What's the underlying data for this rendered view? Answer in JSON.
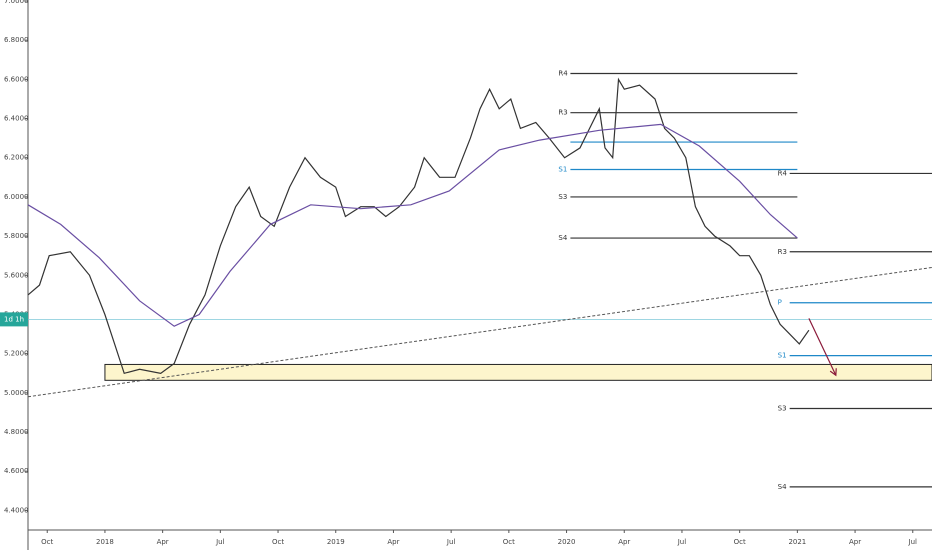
{
  "chart_data": {
    "type": "line",
    "current_label": "1d 1h",
    "current_value": 5.375,
    "xlim": [
      -1,
      46
    ],
    "ylim": [
      4.3,
      7.0
    ],
    "xticks": [
      {
        "value": 0,
        "label": "Oct"
      },
      {
        "value": 3,
        "label": "2018"
      },
      {
        "value": 6,
        "label": "Apr"
      },
      {
        "value": 9,
        "label": "Jul"
      },
      {
        "value": 12,
        "label": "Oct"
      },
      {
        "value": 15,
        "label": "2019"
      },
      {
        "value": 18,
        "label": "Apr"
      },
      {
        "value": 21,
        "label": "Jul"
      },
      {
        "value": 24,
        "label": "Oct"
      },
      {
        "value": 27,
        "label": "2020"
      },
      {
        "value": 30,
        "label": "Apr"
      },
      {
        "value": 33,
        "label": "Jul"
      },
      {
        "value": 36,
        "label": "Oct"
      },
      {
        "value": 39,
        "label": "2021"
      },
      {
        "value": 42,
        "label": "Apr"
      },
      {
        "value": 45,
        "label": "Jul"
      }
    ],
    "yticks": [
      {
        "value": 4.4,
        "label": "4.4000"
      },
      {
        "value": 4.6,
        "label": "4.6000"
      },
      {
        "value": 4.8,
        "label": "4.8000"
      },
      {
        "value": 5.0,
        "label": "5.0000"
      },
      {
        "value": 5.2,
        "label": "5.2000"
      },
      {
        "value": 5.4,
        "label": "5.4000"
      },
      {
        "value": 5.6,
        "label": "5.6000"
      },
      {
        "value": 5.8,
        "label": "5.8000"
      },
      {
        "value": 6.0,
        "label": "6.0000"
      },
      {
        "value": 6.2,
        "label": "6.2000"
      },
      {
        "value": 6.4,
        "label": "6.4000"
      },
      {
        "value": 6.6,
        "label": "6.6000"
      },
      {
        "value": 6.8,
        "label": "6.8000"
      },
      {
        "value": 7.0,
        "label": "7.0000"
      }
    ],
    "series": [
      {
        "color": "#333333",
        "x": [
          -1.0,
          -0.4,
          0.1,
          1.2,
          2.2,
          3.0,
          3.5,
          4.0,
          4.8,
          5.9,
          6.6,
          7.4,
          8.2,
          9.0,
          9.8,
          10.5,
          11.1,
          11.8,
          12.6,
          13.4,
          14.2,
          15.0,
          15.5,
          16.3,
          17.0,
          17.6,
          18.3,
          19.1,
          19.6,
          20.4,
          21.2,
          22.0,
          22.5,
          23.0,
          23.5,
          24.1,
          24.6,
          25.4,
          26.1,
          26.9,
          27.7,
          28.2,
          28.7,
          29.0,
          29.4,
          29.7,
          30.0,
          30.8,
          31.6,
          32.1,
          32.6,
          33.2,
          33.7,
          34.2,
          34.7,
          35.5,
          36.0,
          36.5,
          37.1,
          37.6,
          38.1,
          38.6,
          39.1,
          39.6
        ],
        "values": [
          5.5,
          5.55,
          5.7,
          5.72,
          5.6,
          5.4,
          5.25,
          5.1,
          5.12,
          5.1,
          5.15,
          5.35,
          5.5,
          5.75,
          5.95,
          6.05,
          5.9,
          5.85,
          6.05,
          6.2,
          6.1,
          6.05,
          5.9,
          5.95,
          5.95,
          5.9,
          5.95,
          6.05,
          6.2,
          6.1,
          6.1,
          6.3,
          6.45,
          6.55,
          6.45,
          6.5,
          6.35,
          6.38,
          6.3,
          6.2,
          6.25,
          6.35,
          6.45,
          6.25,
          6.2,
          6.6,
          6.55,
          6.57,
          6.5,
          6.35,
          6.3,
          6.2,
          5.95,
          5.85,
          5.8,
          5.75,
          5.7,
          5.7,
          5.6,
          5.45,
          5.35,
          5.3,
          5.25,
          5.32
        ]
      },
      {
        "color": "#6a4fa3",
        "x": [
          -1.0,
          0.7,
          2.7,
          4.8,
          6.6,
          7.9,
          9.5,
          11.6,
          13.7,
          16.3,
          18.9,
          20.9,
          23.5,
          25.6,
          28.7,
          31.9,
          33.9,
          36.0,
          37.6,
          39.0
        ],
        "values": [
          5.96,
          5.86,
          5.69,
          5.47,
          5.34,
          5.4,
          5.62,
          5.86,
          5.96,
          5.94,
          5.96,
          6.03,
          6.24,
          6.29,
          6.34,
          6.37,
          6.26,
          6.08,
          5.91,
          5.79
        ]
      }
    ],
    "levels": [
      {
        "label": "R4",
        "value": 6.63,
        "x": [
          27.2,
          39.0
        ],
        "color": "#333333"
      },
      {
        "label": "R3",
        "value": 6.43,
        "x": [
          27.2,
          39.0
        ],
        "color": "#333333"
      },
      {
        "value": 6.28,
        "x": [
          27.2,
          39.0
        ],
        "color": "#1e88c8"
      },
      {
        "label": "S1",
        "value": 6.14,
        "x": [
          27.2,
          39.0
        ],
        "color": "#1e88c8"
      },
      {
        "label": "S3",
        "value": 6.0,
        "x": [
          27.2,
          39.0
        ],
        "color": "#333333"
      },
      {
        "label": "S4",
        "value": 5.79,
        "x": [
          27.2,
          39.0
        ],
        "color": "#333333"
      },
      {
        "label": "R4",
        "value": 6.12,
        "x": [
          38.6,
          46
        ],
        "color": "#333333"
      },
      {
        "label": "R3",
        "value": 5.72,
        "x": [
          38.6,
          46
        ],
        "color": "#333333"
      },
      {
        "label": "P",
        "value": 5.46,
        "x": [
          38.6,
          46
        ],
        "color": "#1e88c8"
      },
      {
        "label": "S1",
        "value": 5.19,
        "x": [
          38.6,
          46
        ],
        "color": "#1e88c8"
      },
      {
        "label": "S3",
        "value": 4.92,
        "x": [
          38.6,
          46
        ],
        "color": "#333333"
      },
      {
        "label": "S4",
        "value": 4.52,
        "x": [
          38.6,
          46
        ],
        "color": "#333333"
      }
    ],
    "zone": {
      "x": [
        3.0,
        46
      ],
      "values": [
        5.145,
        5.064
      ]
    },
    "trendline": {
      "x": [
        -1,
        46
      ],
      "values": [
        4.98,
        5.64
      ]
    },
    "arrow": {
      "x": [
        39.6,
        41.0
      ],
      "values": [
        5.38,
        5.09
      ]
    }
  }
}
